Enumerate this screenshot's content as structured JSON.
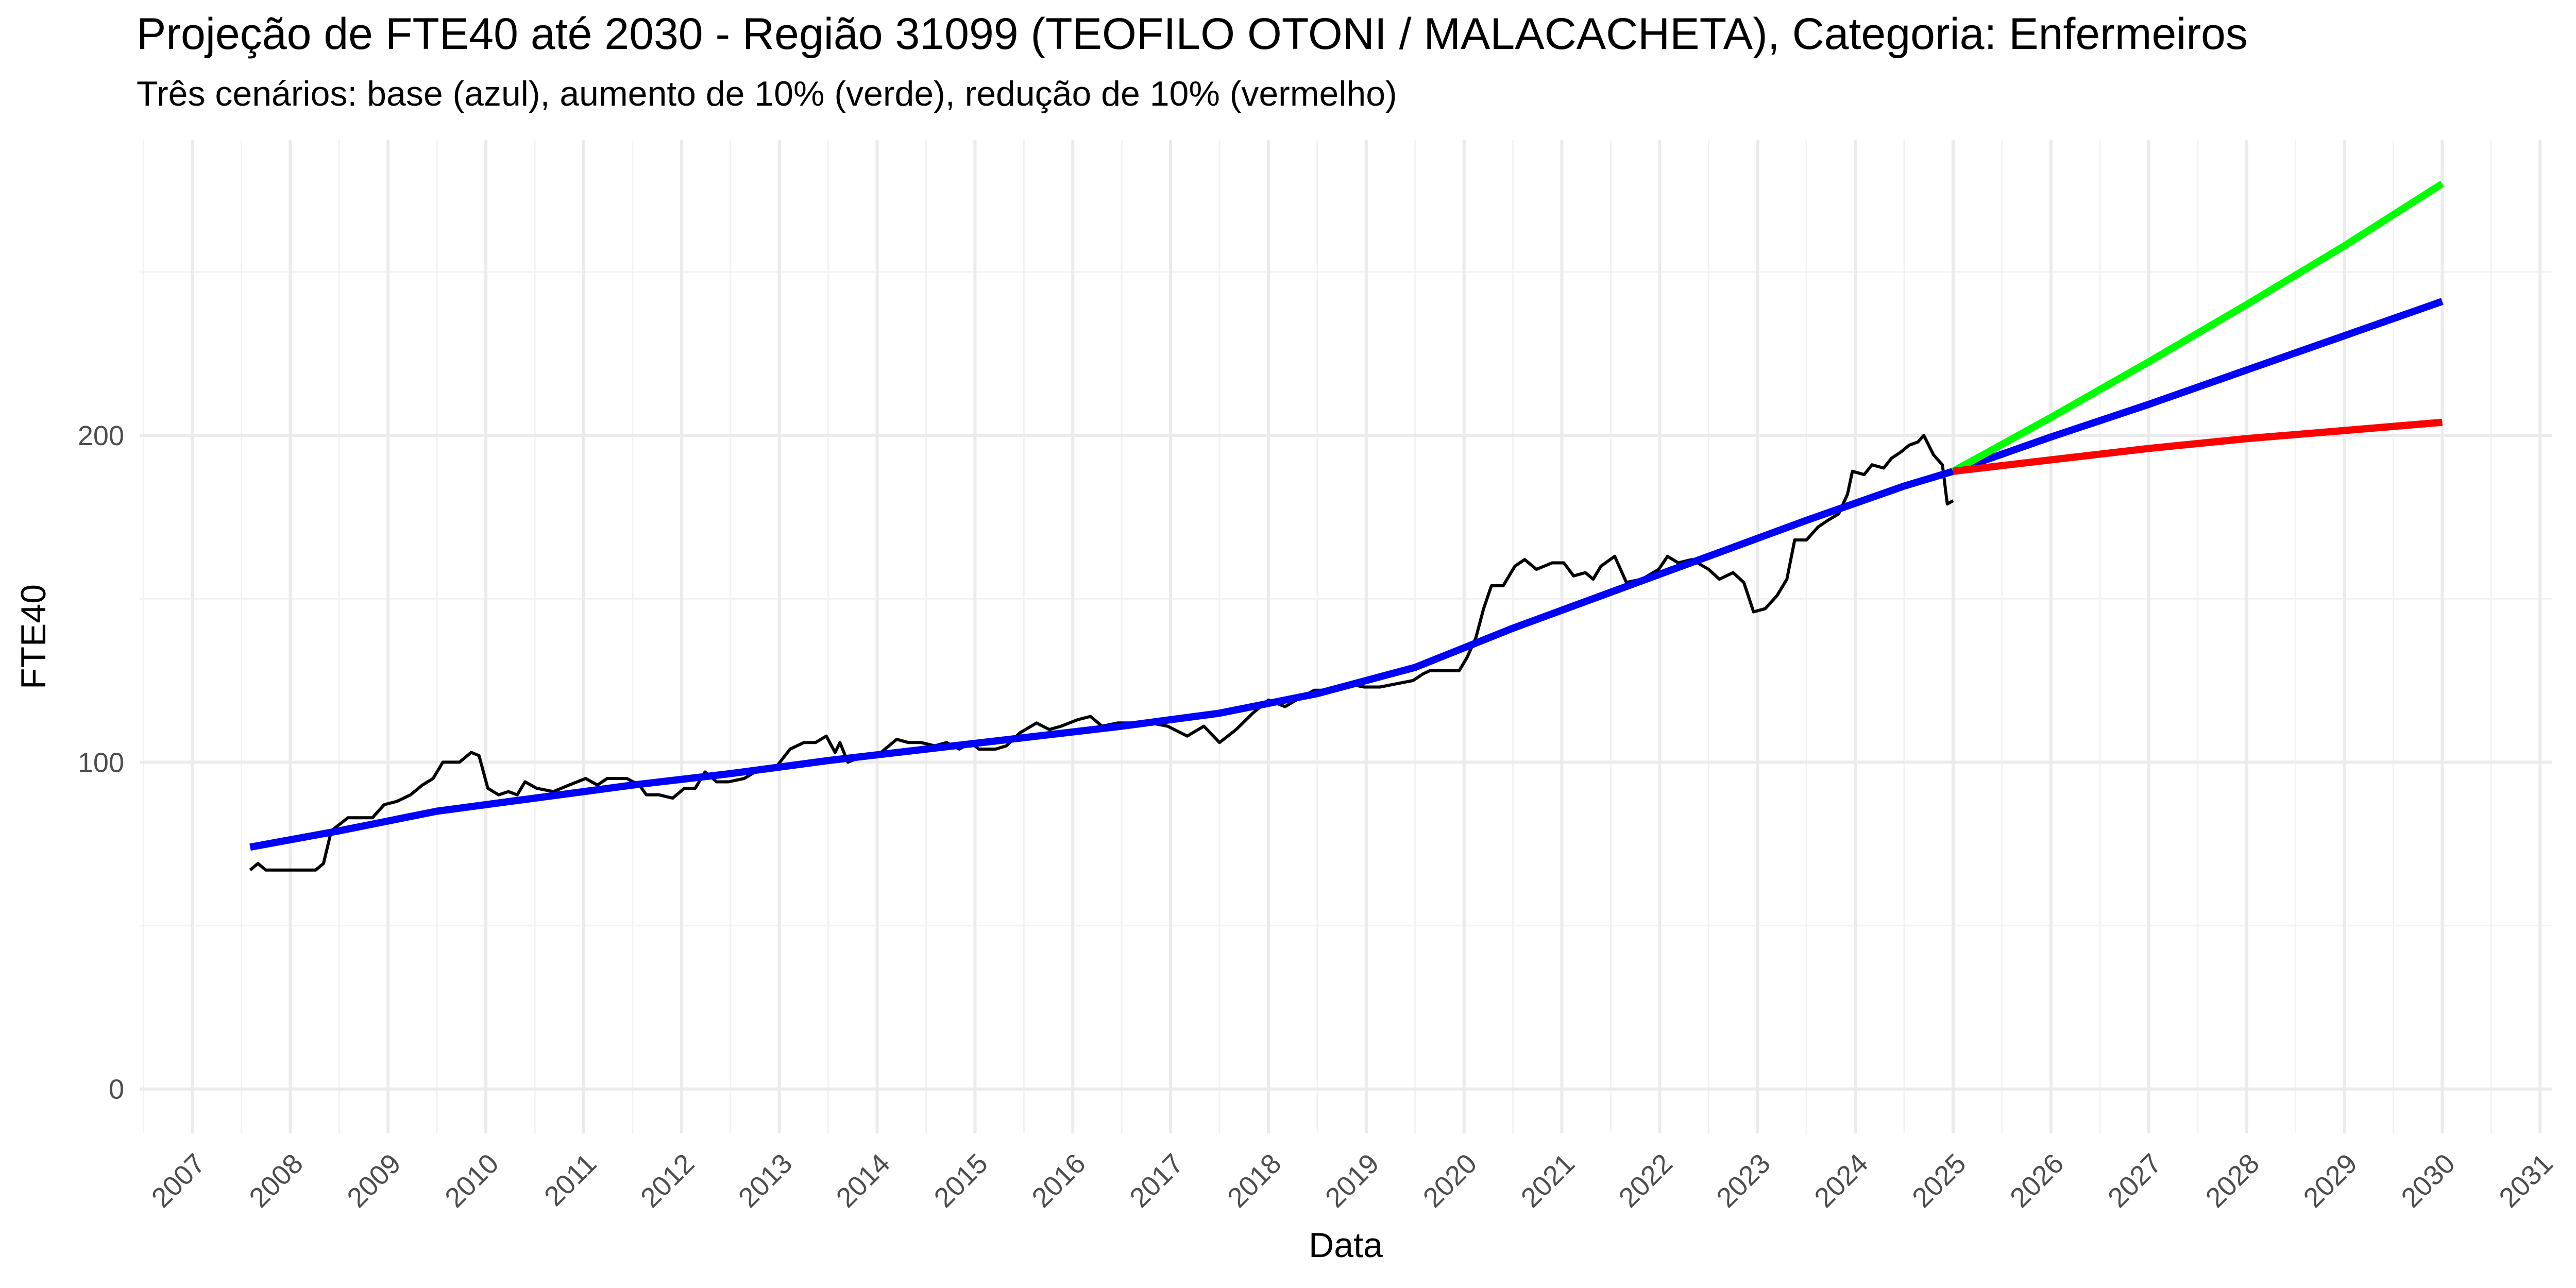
{
  "chart_data": {
    "type": "line",
    "title": "Projeção de FTE40 até 2030 - Região 31099 (TEOFILO OTONI / MALACACHETA), Categoria: Enfermeiros",
    "subtitle": "Três cenários: base (azul), aumento de 10% (verde), redução de 10% (vermelho)",
    "xlabel": "Data",
    "ylabel": "FTE40",
    "xlim": [
      2006.46,
      2031.12
    ],
    "ylim": [
      -13.6,
      290.5
    ],
    "xticks": [
      2007,
      2008,
      2009,
      2010,
      2011,
      2012,
      2013,
      2014,
      2015,
      2016,
      2017,
      2018,
      2019,
      2020,
      2021,
      2022,
      2023,
      2024,
      2025,
      2026,
      2027,
      2028,
      2029,
      2030,
      2031
    ],
    "yticks": [
      0,
      100,
      200
    ],
    "grid": true,
    "series": [
      {
        "color": "#000000",
        "width": 6,
        "x": [
          2007.59,
          2007.67,
          2007.75,
          2008.0,
          2008.26,
          2008.34,
          2008.42,
          2008.59,
          2008.84,
          2008.96,
          2009.09,
          2009.23,
          2009.35,
          2009.46,
          2009.56,
          2009.73,
          2009.85,
          2009.93,
          2010.02,
          2010.13,
          2010.23,
          2010.32,
          2010.4,
          2010.52,
          2010.69,
          2010.85,
          2011.02,
          2011.14,
          2011.24,
          2011.44,
          2011.57,
          2011.64,
          2011.77,
          2011.91,
          2012.03,
          2012.14,
          2012.24,
          2012.36,
          2012.48,
          2012.64,
          2012.81,
          2012.98,
          2013.11,
          2013.25,
          2013.37,
          2013.48,
          2013.57,
          2013.62,
          2013.7,
          2013.87,
          2014.04,
          2014.2,
          2014.32,
          2014.45,
          2014.59,
          2014.71,
          2014.84,
          2014.96,
          2015.04,
          2015.21,
          2015.32,
          2015.46,
          2015.63,
          2015.76,
          2015.88,
          2016.05,
          2016.18,
          2016.3,
          2016.46,
          2016.63,
          2016.8,
          2016.97,
          2017.17,
          2017.34,
          2017.5,
          2017.67,
          2017.84,
          2018.0,
          2018.17,
          2018.34,
          2018.47,
          2018.64,
          2018.81,
          2018.98,
          2019.14,
          2019.31,
          2019.48,
          2019.58,
          2019.65,
          2019.73,
          2019.81,
          2019.95,
          2020.03,
          2020.12,
          2020.2,
          2020.28,
          2020.4,
          2020.52,
          2020.62,
          2020.74,
          2020.9,
          2021.02,
          2021.12,
          2021.24,
          2021.32,
          2021.4,
          2021.54,
          2021.66,
          2021.82,
          2021.99,
          2022.08,
          2022.19,
          2022.33,
          2022.5,
          2022.61,
          2022.75,
          2022.86,
          2022.96,
          2023.08,
          2023.2,
          2023.3,
          2023.38,
          2023.5,
          2023.62,
          2023.72,
          2023.83,
          2023.92,
          2023.97,
          2024.09,
          2024.17,
          2024.29,
          2024.37,
          2024.47,
          2024.55,
          2024.64,
          2024.7,
          2024.8,
          2024.89,
          2024.94,
          2025.0
        ],
        "values": [
          67,
          69,
          67,
          67,
          67,
          69,
          79,
          83,
          83,
          87,
          88,
          90,
          93,
          95,
          100,
          100,
          103,
          102,
          92,
          90,
          91,
          90,
          94,
          92,
          91,
          93,
          95,
          93,
          95,
          95,
          93,
          90,
          90,
          89,
          92,
          92,
          97,
          94,
          94,
          95,
          98,
          99,
          104,
          106,
          106,
          108,
          103,
          106,
          100,
          102,
          103,
          107,
          106,
          106,
          105,
          106,
          104,
          106,
          104,
          104,
          105,
          109,
          112,
          110,
          111,
          113,
          114,
          111,
          112,
          112,
          112,
          111,
          108,
          111,
          106,
          110,
          115,
          119,
          117,
          120,
          122,
          122,
          124,
          123,
          123,
          124,
          125,
          127,
          128,
          128,
          128,
          128,
          132,
          138,
          147,
          154,
          154,
          160,
          162,
          159,
          161,
          161,
          157,
          158,
          156,
          160,
          163,
          155,
          156,
          159,
          163,
          161,
          162,
          159,
          156,
          158,
          155,
          146,
          147,
          151,
          156,
          168,
          168,
          172,
          174,
          176,
          182,
          189,
          188,
          191,
          190,
          193,
          195,
          197,
          198,
          200,
          194,
          191,
          179,
          180
        ]
      },
      {
        "color": "#0000ff",
        "width": 14,
        "x": [
          2007.59,
          2008.5,
          2009.5,
          2010.5,
          2011.5,
          2012.5,
          2013.5,
          2014.5,
          2015.5,
          2016.5,
          2017.5,
          2018.5,
          2019.5,
          2020.5,
          2021.5,
          2022.5,
          2023.5,
          2024.5,
          2025.0,
          2026.0,
          2027.0,
          2028.0,
          2029.0,
          2030.0
        ],
        "values": [
          74,
          79,
          85,
          89,
          93,
          96.5,
          100.5,
          104,
          107.5,
          111,
          115,
          121,
          129,
          141,
          152,
          163,
          174,
          184.5,
          189,
          199.5,
          209.5,
          220,
          230.5,
          241
        ]
      },
      {
        "color": "#00ff00",
        "width": 14,
        "x": [
          2025.0,
          2026.0,
          2027.0,
          2028.0,
          2029.0,
          2030.0
        ],
        "values": [
          189,
          205.5,
          222.5,
          240,
          258,
          277
        ]
      },
      {
        "color": "#ff0000",
        "width": 14,
        "x": [
          2025.0,
          2026.0,
          2027.0,
          2028.0,
          2029.0,
          2030.0
        ],
        "values": [
          189,
          192.5,
          196,
          199,
          201.5,
          204
        ]
      }
    ]
  }
}
